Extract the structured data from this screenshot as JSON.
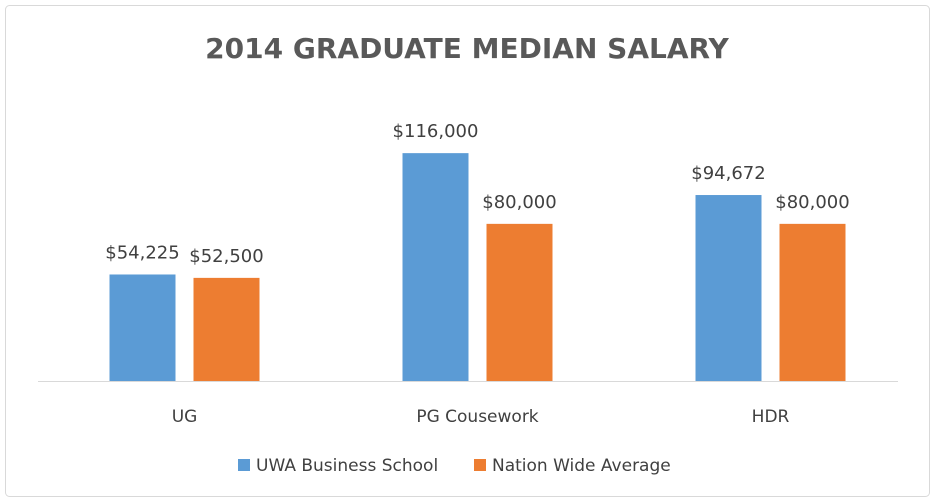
{
  "chart_data": {
    "type": "bar",
    "title": "2014 GRADUATE MEDIAN SALARY",
    "categories": [
      "UG",
      "PG Cousework",
      "HDR"
    ],
    "series": [
      {
        "name": "UWA Business School",
        "color": "#5b9bd5",
        "values": [
          54225,
          116000,
          94672
        ],
        "value_labels": [
          "$54,225",
          "$116,000",
          "$94,672"
        ]
      },
      {
        "name": "Nation Wide Average",
        "color": "#ed7d31",
        "values": [
          52500,
          80000,
          80000
        ],
        "value_labels": [
          "$52,500",
          "$80,000",
          "$80,000"
        ]
      }
    ],
    "ylim": [
      0,
      140000
    ],
    "legend": "bottom"
  }
}
